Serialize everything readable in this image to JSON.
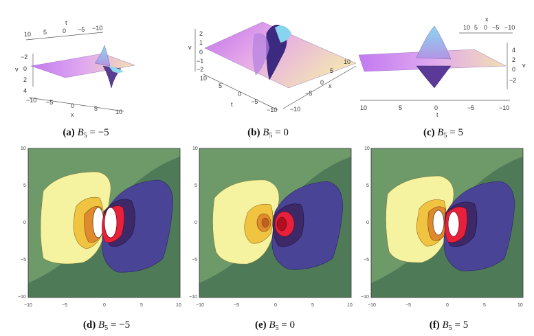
{
  "panels": [
    {
      "label": "(a)",
      "sym": "B",
      "sub": "5",
      "rel": "=",
      "value": "−5",
      "axes": {
        "t_ticks": [
          "10",
          "5",
          "0",
          "−5",
          "−10"
        ],
        "x_ticks": [
          "−10",
          "−5",
          "0",
          "5",
          "10"
        ],
        "v_ticks": [
          "−2",
          "0",
          "2",
          "4"
        ],
        "t_label": "t",
        "x_label": "x",
        "v_label": "v"
      }
    },
    {
      "label": "(b)",
      "sym": "B",
      "sub": "5",
      "rel": "=",
      "value": "0",
      "axes": {
        "t_ticks": [
          "10",
          "5",
          "0",
          "−5",
          "−10"
        ],
        "x_ticks": [
          "10",
          "5",
          "0",
          "−5",
          "−10"
        ],
        "v_ticks": [
          "2",
          "1",
          "0",
          "−1",
          "−2"
        ],
        "t_label": "t",
        "x_label": "x",
        "v_label": "v"
      }
    },
    {
      "label": "(c)",
      "sym": "B",
      "sub": "5",
      "rel": "=",
      "value": "5",
      "axes": {
        "t_ticks": [
          "10",
          "5",
          "0",
          "−5",
          "−10"
        ],
        "x_ticks": [
          "10",
          "5",
          "0",
          "−5",
          "−10"
        ],
        "v_ticks": [
          "4",
          "2",
          "0",
          "−2"
        ],
        "t_label": "t",
        "x_label": "x",
        "v_label": "v"
      }
    },
    {
      "label": "(d)",
      "sym": "B",
      "sub": "5",
      "rel": "=",
      "value": "−5",
      "axes": {
        "x_ticks": [
          "−10",
          "−5",
          "0",
          "5",
          "10"
        ],
        "y_ticks": [
          "10",
          "5",
          "0",
          "−5",
          "−10"
        ]
      }
    },
    {
      "label": "(e)",
      "sym": "B",
      "sub": "5",
      "rel": "=",
      "value": "0",
      "axes": {
        "x_ticks": [
          "−10",
          "−5",
          "0",
          "5",
          "10"
        ],
        "y_ticks": [
          "10",
          "5",
          "0",
          "−5",
          "−10"
        ]
      }
    },
    {
      "label": "(f)",
      "sym": "B",
      "sub": "5",
      "rel": "=",
      "value": "5",
      "axes": {
        "x_ticks": [
          "−10",
          "−5",
          "0",
          "5",
          "10"
        ],
        "y_ticks": [
          "10",
          "5",
          "0",
          "−5",
          "−10"
        ]
      }
    }
  ],
  "colors": {
    "surface_left": "#c070e8",
    "surface_right": "#f2dfb0",
    "surface_peak": "#8ad8f0",
    "contour_bg_dark": "#4f7a58",
    "contour_bg_light": "#6e9a6a",
    "contour_yellow_light": "#f6f3a0",
    "contour_yellow": "#f0c440",
    "contour_orange": "#e08a2e",
    "contour_red": "#e8203c",
    "contour_purple_dark": "#3d2868",
    "contour_purple": "#4a4496"
  }
}
